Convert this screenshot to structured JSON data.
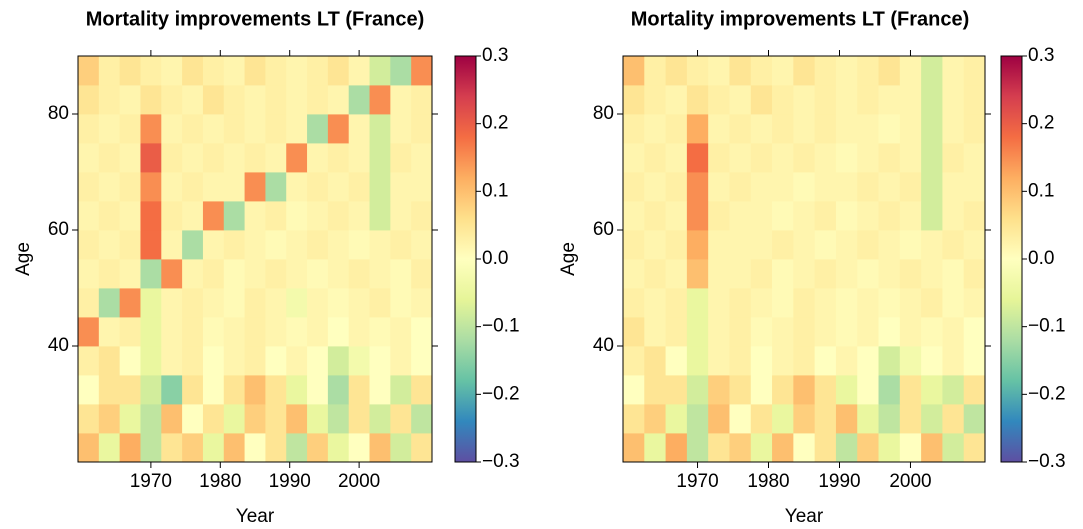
{
  "chart_data": [
    {
      "type": "heatmap",
      "title": "Mortality improvements LT (France)",
      "xlabel": "Year",
      "ylabel": "Age",
      "x": [
        1961,
        1964,
        1967,
        1970,
        1973,
        1976,
        1979,
        1982,
        1985,
        1988,
        1991,
        1994,
        1997,
        2000,
        2003,
        2006,
        2009
      ],
      "y": [
        22.5,
        27.5,
        32.5,
        37.5,
        42.5,
        47.5,
        52.5,
        57.5,
        62.5,
        67.5,
        72.5,
        77.5,
        82.5,
        87.5
      ],
      "values": [
        [
          0.1,
          -0.05,
          0.12,
          -0.1,
          0.05,
          0.08,
          -0.05,
          0.1,
          0,
          0.05,
          -0.1,
          0.08,
          -0.05,
          0,
          0.1,
          -0.08,
          0.05
        ],
        [
          0.05,
          0.08,
          -0.05,
          -0.1,
          0.1,
          0,
          0.05,
          -0.05,
          0.08,
          0.05,
          0.1,
          -0.05,
          -0.1,
          0.05,
          -0.08,
          0.05,
          -0.1
        ],
        [
          0,
          0.05,
          0.05,
          -0.08,
          -0.15,
          0.05,
          0,
          0.05,
          0.1,
          0.05,
          -0.05,
          0,
          -0.12,
          0.05,
          0,
          -0.08,
          0.05
        ],
        [
          0.03,
          0.05,
          0,
          -0.05,
          0.02,
          0.03,
          0,
          0.02,
          0.03,
          0,
          0.02,
          0,
          -0.08,
          -0.03,
          0,
          0.02,
          0
        ],
        [
          0.15,
          0.02,
          0.03,
          -0.05,
          0.02,
          0.03,
          0.01,
          0.02,
          0.03,
          0.02,
          0.01,
          0.02,
          0,
          0.02,
          0.01,
          0.02,
          0
        ],
        [
          0.03,
          -0.12,
          0.15,
          -0.05,
          0.02,
          0.03,
          0.02,
          0.01,
          0.03,
          0.02,
          -0.03,
          0.02,
          0.01,
          0.02,
          0.03,
          0.01,
          0.02
        ],
        [
          0.02,
          0.03,
          0.02,
          -0.12,
          0.15,
          0.02,
          0.03,
          0.01,
          0.02,
          0.03,
          0.02,
          0.01,
          0.02,
          0.03,
          0.02,
          0.01,
          0.03
        ],
        [
          0.03,
          0.02,
          0.03,
          0.18,
          0.02,
          -0.12,
          0.02,
          0.03,
          0.02,
          0.01,
          0.02,
          0.03,
          0.02,
          0.01,
          0.02,
          0.03,
          0.02
        ],
        [
          0.02,
          0.03,
          0.02,
          0.18,
          0.03,
          0.02,
          0.15,
          -0.12,
          0.02,
          0.03,
          0.01,
          0.02,
          0.03,
          0.02,
          -0.08,
          0.02,
          0.03
        ],
        [
          0.03,
          0.02,
          0.03,
          0.15,
          0.02,
          0.03,
          0.02,
          0.02,
          0.15,
          -0.12,
          0.02,
          0.03,
          0.02,
          0.03,
          -0.08,
          0.02,
          0.02
        ],
        [
          0.02,
          0.03,
          0.02,
          0.2,
          0.03,
          0.02,
          0.03,
          0.02,
          0.03,
          0.02,
          0.15,
          0.02,
          0.03,
          0.02,
          -0.08,
          0.03,
          0.02
        ],
        [
          0.03,
          0.02,
          0.03,
          0.15,
          0.02,
          0.03,
          0.02,
          0.03,
          0.02,
          0.03,
          0.02,
          -0.12,
          0.15,
          0.02,
          -0.08,
          0.02,
          0.03
        ],
        [
          0.05,
          0.03,
          0.02,
          0.05,
          0.03,
          0.02,
          0.05,
          0.03,
          0.02,
          0.03,
          0.02,
          0.03,
          0.02,
          -0.12,
          0.15,
          0.02,
          0.03
        ],
        [
          0.08,
          0.03,
          0.05,
          0.03,
          0.02,
          0.05,
          0.03,
          0.02,
          0.05,
          0.03,
          0.02,
          0.03,
          0.05,
          0.02,
          -0.08,
          -0.12,
          0.15
        ]
      ],
      "xlim": [
        1959.5,
        2010.5
      ],
      "ylim": [
        20,
        90
      ],
      "xticks": [
        1970,
        1980,
        1990,
        2000
      ],
      "yticks": [
        40,
        60,
        80
      ],
      "clim": [
        -0.3,
        0.3
      ],
      "cticks": [
        {
          "value": -0.3,
          "label": "−0.3"
        },
        {
          "value": -0.2,
          "label": "−0.2"
        },
        {
          "value": -0.1,
          "label": "−0.1"
        },
        {
          "value": 0,
          "label": "0.0"
        },
        0.1,
        0.2,
        0.3
      ],
      "colorscale": [
        "#5e4fa2",
        "#3288bd",
        "#66c2a5",
        "#abdda4",
        "#e6f598",
        "#ffffbf",
        "#fee08b",
        "#fdae61",
        "#f46d43",
        "#d53e4f",
        "#9e0142"
      ]
    },
    {
      "type": "heatmap",
      "title": "Mortality improvements LT (France)",
      "xlabel": "Year",
      "ylabel": "Age",
      "x": [
        1961,
        1964,
        1967,
        1970,
        1973,
        1976,
        1979,
        1982,
        1985,
        1988,
        1991,
        1994,
        1997,
        2000,
        2003,
        2006,
        2009
      ],
      "y": [
        22.5,
        27.5,
        32.5,
        37.5,
        42.5,
        47.5,
        52.5,
        57.5,
        62.5,
        67.5,
        72.5,
        77.5,
        82.5,
        87.5
      ],
      "values": [
        [
          0.1,
          -0.05,
          0.12,
          -0.1,
          0.05,
          0.08,
          -0.05,
          0.1,
          0,
          0.05,
          -0.1,
          0.08,
          -0.05,
          0,
          0.1,
          -0.08,
          0.05
        ],
        [
          0.05,
          0.08,
          -0.05,
          -0.1,
          0.1,
          0,
          0.05,
          -0.05,
          0.08,
          0.05,
          0.1,
          -0.05,
          -0.1,
          0.05,
          -0.08,
          0.05,
          -0.1
        ],
        [
          0,
          0.05,
          0.05,
          -0.08,
          0.08,
          0.05,
          0,
          0.05,
          0.1,
          0.05,
          -0.05,
          0,
          -0.12,
          0.05,
          -0.05,
          -0.08,
          0.05
        ],
        [
          0.03,
          0.05,
          0,
          -0.05,
          0.02,
          0.03,
          0,
          0.02,
          0.03,
          0,
          0.02,
          0,
          -0.08,
          -0.03,
          0,
          0.02,
          0
        ],
        [
          0.05,
          0.02,
          0.03,
          -0.05,
          0.02,
          0.03,
          0.01,
          0.02,
          0.03,
          0.02,
          0.01,
          0.02,
          0,
          0.02,
          0.01,
          0.02,
          0
        ],
        [
          0.03,
          0.02,
          0.03,
          -0.05,
          0.02,
          0.03,
          0.02,
          0.01,
          0.03,
          0.02,
          0.01,
          0.02,
          0.01,
          0.02,
          0.03,
          0.01,
          0.02
        ],
        [
          0.02,
          0.03,
          0.02,
          0.1,
          0.02,
          0.02,
          0.03,
          0.01,
          0.02,
          0.03,
          0.02,
          0.01,
          0.02,
          0.03,
          0.02,
          0.01,
          0.03
        ],
        [
          0.03,
          0.02,
          0.03,
          0.12,
          0.02,
          0.02,
          0.02,
          0.03,
          0.02,
          0.01,
          0.02,
          0.03,
          0.02,
          0.01,
          0.02,
          0.03,
          0.02
        ],
        [
          0.02,
          0.03,
          0.02,
          0.15,
          0.03,
          0.02,
          0.02,
          0.01,
          0.02,
          0.03,
          0.01,
          0.02,
          0.03,
          0.02,
          -0.08,
          0.02,
          0.03
        ],
        [
          0.03,
          0.02,
          0.03,
          0.15,
          0.02,
          0.03,
          0.02,
          0.02,
          0.01,
          0.02,
          0.02,
          0.03,
          0.02,
          0.03,
          -0.08,
          0.02,
          0.02
        ],
        [
          0.02,
          0.03,
          0.02,
          0.18,
          0.03,
          0.02,
          0.03,
          0.02,
          0.03,
          0.02,
          0.01,
          0.02,
          0.03,
          0.02,
          -0.08,
          0.03,
          0.02
        ],
        [
          0.03,
          0.02,
          0.03,
          0.12,
          0.02,
          0.03,
          0.02,
          0.03,
          0.02,
          0.03,
          0.02,
          0.02,
          0.01,
          0.02,
          -0.08,
          0.02,
          0.03
        ],
        [
          0.05,
          0.03,
          0.02,
          0.05,
          0.03,
          0.02,
          0.05,
          0.03,
          0.02,
          0.03,
          0.02,
          0.03,
          0.02,
          0.02,
          -0.08,
          0.02,
          0.03
        ],
        [
          0.1,
          0.03,
          0.05,
          0.03,
          0.02,
          0.05,
          0.03,
          0.02,
          0.05,
          0.03,
          0.02,
          0.03,
          0.05,
          0.02,
          -0.08,
          0.02,
          0.03
        ]
      ],
      "xlim": [
        1959.5,
        2010.5
      ],
      "ylim": [
        20,
        90
      ],
      "xticks": [
        1970,
        1980,
        1990,
        2000
      ],
      "yticks": [
        40,
        60,
        80
      ],
      "clim": [
        -0.3,
        0.3
      ],
      "cticks": [
        {
          "value": -0.3,
          "label": "−0.3"
        },
        {
          "value": -0.2,
          "label": "−0.2"
        },
        {
          "value": -0.1,
          "label": "−0.1"
        },
        {
          "value": 0,
          "label": "0.0"
        },
        0.1,
        0.2,
        0.3
      ],
      "colorscale": [
        "#5e4fa2",
        "#3288bd",
        "#66c2a5",
        "#abdda4",
        "#e6f598",
        "#ffffbf",
        "#fee08b",
        "#fdae61",
        "#f46d43",
        "#d53e4f",
        "#9e0142"
      ]
    }
  ]
}
